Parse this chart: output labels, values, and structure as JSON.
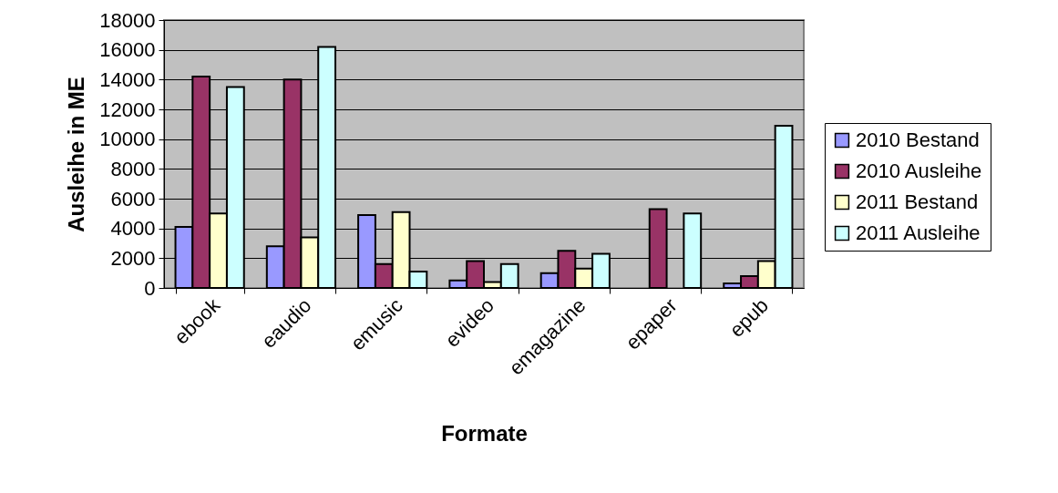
{
  "chart_data": {
    "type": "bar",
    "xlabel": "Formate",
    "ylabel": "Ausleihe in ME",
    "categories": [
      "ebook",
      "eaudio",
      "emusic",
      "evideo",
      "emagazine",
      "epaper",
      "epub"
    ],
    "series": [
      {
        "name": "2010 Bestand",
        "color": "#9999ff",
        "values": [
          4100,
          2800,
          4900,
          500,
          1000,
          null,
          300
        ]
      },
      {
        "name": "2010 Ausleihe",
        "color": "#993366",
        "values": [
          14200,
          14000,
          1600,
          1800,
          2500,
          5300,
          800
        ]
      },
      {
        "name": "2011 Bestand",
        "color": "#ffffcc",
        "values": [
          5000,
          3400,
          5100,
          400,
          1300,
          null,
          1800
        ]
      },
      {
        "name": "2011 Ausleihe",
        "color": "#ccffff",
        "values": [
          13500,
          16200,
          1100,
          1600,
          2300,
          5000,
          10900
        ]
      }
    ],
    "ylim": [
      0,
      18000
    ],
    "yticks": [
      0,
      2000,
      4000,
      6000,
      8000,
      10000,
      12000,
      14000,
      16000,
      18000
    ],
    "grid": "y",
    "legend": "right"
  }
}
